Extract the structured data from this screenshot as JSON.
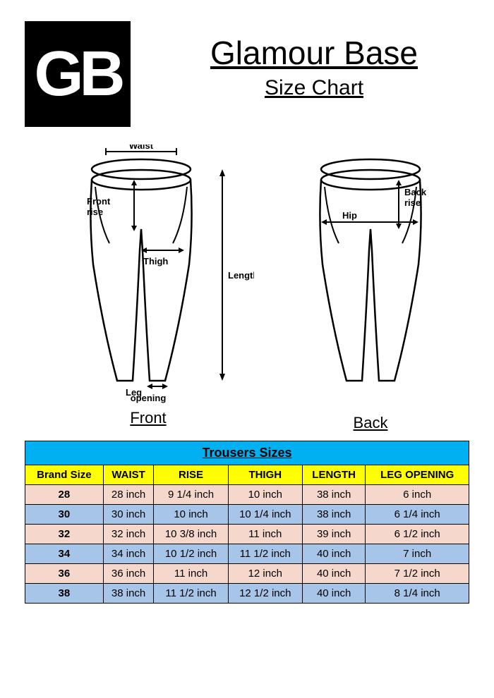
{
  "logo_text": "GB",
  "brand_name": "Glamour Base",
  "subtitle": "Size Chart",
  "diagram": {
    "front_label": "Front",
    "back_label": "Back",
    "measurements": {
      "waist": "Waist",
      "front_rise": "Front\nrise",
      "thigh": "Thigh",
      "length": "Length",
      "leg_opening": "Leg\nopening",
      "back_rise": "Back\nrise",
      "hip": "Hip"
    }
  },
  "table": {
    "title": "Trousers Sizes",
    "columns": [
      "Brand Size",
      "WAIST",
      "RISE",
      "THIGH",
      "LENGTH",
      "LEG OPENING"
    ],
    "rows": [
      {
        "color": "pink",
        "cells": [
          "28",
          "28 inch",
          "9 1/4 inch",
          "10 inch",
          "38 inch",
          "6 inch"
        ]
      },
      {
        "color": "blue",
        "cells": [
          "30",
          "30 inch",
          "10 inch",
          "10 1/4 inch",
          "38 inch",
          "6 1/4 inch"
        ]
      },
      {
        "color": "pink",
        "cells": [
          "32",
          "32 inch",
          "10 3/8 inch",
          "11 inch",
          "39 inch",
          "6 1/2 inch"
        ]
      },
      {
        "color": "blue",
        "cells": [
          "34",
          "34 inch",
          "10 1/2 inch",
          "11 1/2 inch",
          "40 inch",
          "7 inch"
        ]
      },
      {
        "color": "pink",
        "cells": [
          "36",
          "36 inch",
          "11 inch",
          "12 inch",
          "40 inch",
          "7 1/2 inch"
        ]
      },
      {
        "color": "blue",
        "cells": [
          "38",
          "38 inch",
          "11 1/2 inch",
          "12 1/2 inch",
          "40 inch",
          "8 1/4 inch"
        ]
      }
    ],
    "styles": {
      "title_bg": "#00b0f0",
      "header_bg": "#ffff00",
      "row_pink_bg": "#f6d7cc",
      "row_blue_bg": "#a7c5e8",
      "border_color": "#000000"
    }
  }
}
